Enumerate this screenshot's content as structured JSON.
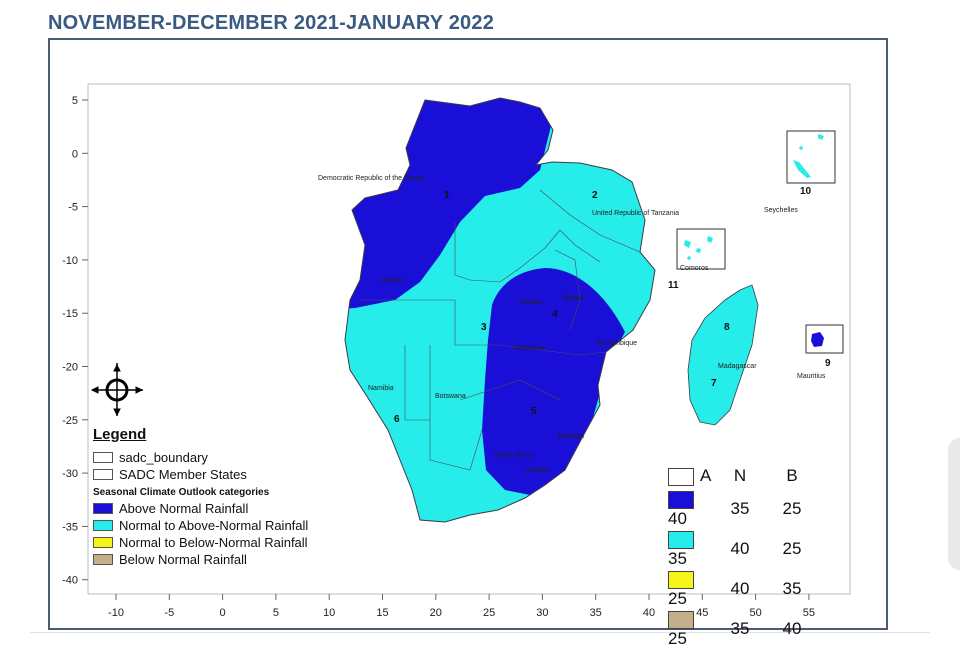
{
  "title": "NOVEMBER-DECEMBER 2021-JANUARY 2022",
  "map": {
    "lon_ticks": [
      "-10",
      "-5",
      "0",
      "5",
      "10",
      "15",
      "20",
      "25",
      "30",
      "35",
      "40",
      "45",
      "50",
      "55"
    ],
    "lat_ticks": [
      "5",
      "0",
      "-5",
      "-10",
      "-15",
      "-20",
      "-25",
      "-30",
      "-35",
      "-40"
    ],
    "place_labels": {
      "drc": "Democratic Republic of the Congo",
      "tanzania": "United Republic of Tanzania",
      "seychelles": "Seychelles",
      "comoros": "Comoros",
      "mozambique": "Mozambique",
      "madagascar": "Madagascar",
      "mauritius": "Mauritius",
      "namibia": "Namibia",
      "botswana": "Botswana",
      "angola": "Angola",
      "eswatini": "Eswatini",
      "zimbabwe": "Zimbabwe",
      "malawi": "Malawi",
      "zambia": "Zambia",
      "lesotho": "Lesotho",
      "south_africa": "South Africa"
    },
    "zone_numbers": {
      "z1": "1",
      "z2": "2",
      "z3": "3",
      "z4": "4",
      "z5": "5",
      "z6": "6",
      "z7": "7",
      "z8": "8",
      "z9": "9",
      "z10": "10",
      "z11": "11"
    },
    "colors": {
      "above_normal": "#1a0fd6",
      "normal_to_above": "#26ecea",
      "normal_to_below": "#f5f51a",
      "below_normal": "#c3b08a",
      "ocean": "#ffffff",
      "border": "#3a3a4a"
    }
  },
  "legend": {
    "heading": "Legend",
    "boundary_items": [
      "sadc_boundary",
      "SADC Member States"
    ],
    "categories_heading": "Seasonal Climate Outlook categories",
    "categories": [
      {
        "label": "Above Normal Rainfall",
        "color": "#1a0fd6"
      },
      {
        "label": "Normal to Above-Normal Rainfall",
        "color": "#26ecea"
      },
      {
        "label": "Normal to Below-Normal Rainfall",
        "color": "#f5f51a"
      },
      {
        "label": "Below Normal Rainfall",
        "color": "#c3b08a"
      }
    ]
  },
  "probabilities": {
    "headers": [
      "A",
      "N",
      "B"
    ],
    "rows": [
      {
        "color": "#1a0fd6",
        "values": [
          "40",
          "35",
          "25"
        ]
      },
      {
        "color": "#26ecea",
        "values": [
          "35",
          "40",
          "25"
        ]
      },
      {
        "color": "#f5f51a",
        "values": [
          "25",
          "40",
          "35"
        ]
      },
      {
        "color": "#c3b08a",
        "values": [
          "25",
          "35",
          "40"
        ]
      }
    ]
  }
}
